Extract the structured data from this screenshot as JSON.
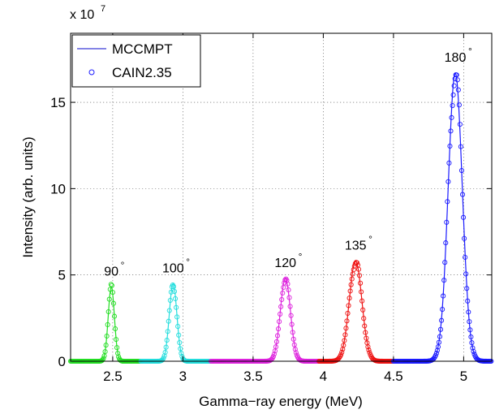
{
  "chart_data": {
    "type": "line",
    "title": "",
    "xlabel": "Gamma−ray energy (MeV)",
    "ylabel": "Intensity (arb. units)",
    "xlim": [
      2.2,
      5.2
    ],
    "ylim": [
      0,
      190000000
    ],
    "xticks": [
      2.5,
      3,
      3.5,
      4,
      4.5,
      5
    ],
    "xtick_labels": [
      "2.5",
      "3",
      "3.5",
      "4",
      "4.5",
      "5"
    ],
    "yticks": [
      0,
      50000000,
      100000000,
      150000000
    ],
    "ytick_labels": [
      "0",
      "5",
      "10",
      "15"
    ],
    "y_exponent_base": "x 10",
    "y_exponent_power": "7",
    "grid": true,
    "legend_position": "top-left",
    "legend": [
      {
        "label": "MCCMPT",
        "marker": "line",
        "color": "#3b3bd6"
      },
      {
        "label": "CAIN2.35",
        "marker": "circle",
        "color": "#1a1aff"
      }
    ],
    "peaks": [
      {
        "angle": "90",
        "degree_symbol": "°",
        "center": 2.49,
        "sigma": 0.022,
        "height": 43000000,
        "xmin": 2.2,
        "xmax": 2.7,
        "color": "#22dd22"
      },
      {
        "angle": "100",
        "degree_symbol": "°",
        "center": 2.93,
        "sigma": 0.027,
        "height": 45000000,
        "xmin": 2.7,
        "xmax": 3.2,
        "color": "#22dddd"
      },
      {
        "angle": "120",
        "degree_symbol": "°",
        "center": 3.73,
        "sigma": 0.036,
        "height": 48000000,
        "xmin": 3.2,
        "xmax": 3.97,
        "color": "#dd22dd"
      },
      {
        "angle": "135",
        "degree_symbol": "°",
        "center": 4.23,
        "sigma": 0.045,
        "height": 58000000,
        "xmin": 3.97,
        "xmax": 4.5,
        "color": "#ee1111"
      },
      {
        "angle": "180",
        "degree_symbol": "°",
        "center": 4.94,
        "sigma": 0.05,
        "height": 167000000,
        "xmin": 4.5,
        "xmax": 5.2,
        "color": "#1a1aff"
      }
    ]
  }
}
